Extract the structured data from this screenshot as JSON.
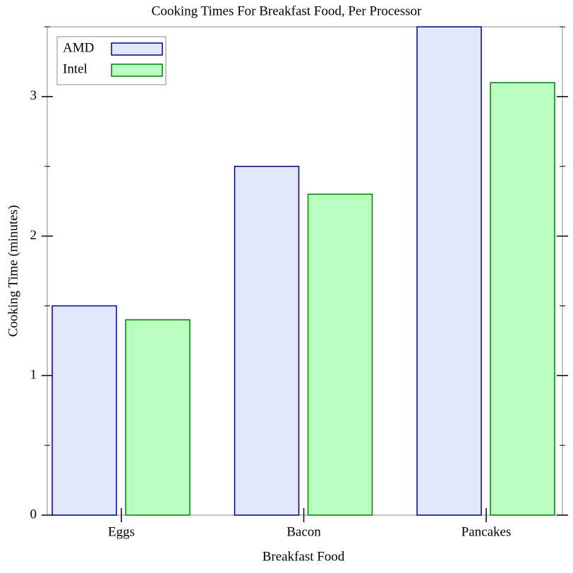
{
  "chart_data": {
    "type": "bar",
    "title": "Cooking Times For Breakfast Food, Per Processor",
    "x_label": "Breakfast Food",
    "y_label": "Cooking Time (minutes)",
    "categories": [
      "Eggs",
      "Bacon",
      "Pancakes"
    ],
    "series": [
      {
        "name": "AMD",
        "color": "#e0e6fc",
        "edge_color": "#00007f",
        "values": [
          1.5,
          2.5,
          3.5
        ]
      },
      {
        "name": "Intel",
        "color": "#b8ffc0",
        "edge_color": "#008000",
        "values": [
          1.4,
          2.3,
          3.1
        ]
      }
    ],
    "ylim": [
      0,
      3.5
    ],
    "yticks": [
      0,
      1,
      2,
      3
    ],
    "minor_yticks": [
      0.5,
      1.5,
      2.5,
      3.5
    ],
    "grid": false,
    "legend": "top-left"
  }
}
